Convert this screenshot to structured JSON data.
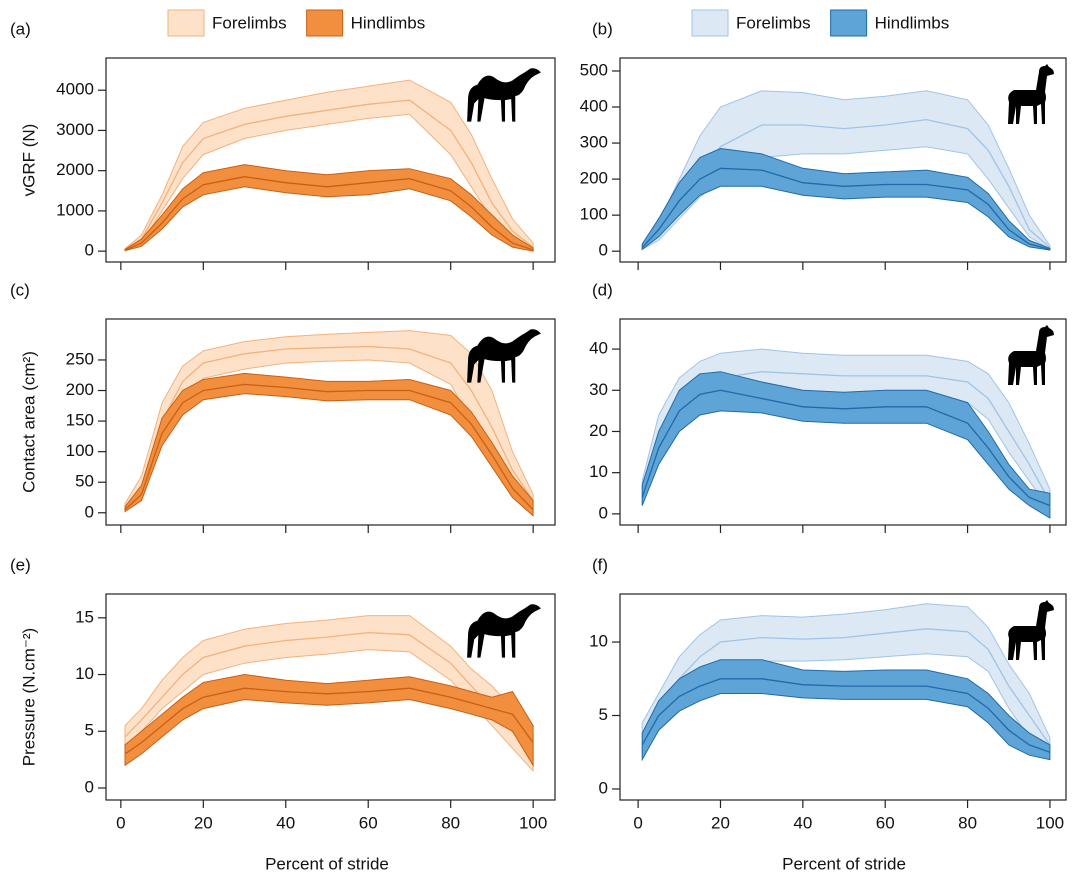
{
  "chart_data": [
    {
      "type": "band",
      "label": "(a)",
      "ylabel": "vGRF (N)",
      "x": [
        1,
        5,
        10,
        15,
        20,
        30,
        40,
        50,
        60,
        70,
        80,
        85,
        90,
        95,
        100
      ],
      "xlim": [
        -3.6,
        105.3
      ],
      "ylim": [
        -270,
        4800
      ],
      "xticks": [
        0,
        20,
        40,
        60,
        80,
        100
      ],
      "yticks": [
        0,
        1000,
        2000,
        3000,
        4000
      ],
      "series": [
        {
          "name": "Forelimbs",
          "color": "#fde1c8",
          "line_color": "#f4b27c",
          "values": [
            50,
            300,
            1200,
            2200,
            2800,
            3150,
            3350,
            3500,
            3650,
            3750,
            3000,
            2200,
            1200,
            500,
            100
          ],
          "upper": [
            60,
            400,
            1400,
            2600,
            3200,
            3550,
            3750,
            3950,
            4100,
            4250,
            3700,
            2900,
            1800,
            800,
            200
          ],
          "lower": [
            30,
            200,
            1000,
            1800,
            2400,
            2800,
            3000,
            3150,
            3300,
            3400,
            2400,
            1600,
            800,
            250,
            20
          ]
        },
        {
          "name": "Hindlimbs",
          "color": "#f28f3f",
          "line_color": "#c95f14",
          "values": [
            20,
            200,
            700,
            1300,
            1650,
            1850,
            1700,
            1600,
            1700,
            1800,
            1500,
            1100,
            600,
            200,
            30
          ],
          "upper": [
            40,
            300,
            900,
            1550,
            1950,
            2150,
            2000,
            1900,
            2000,
            2050,
            1800,
            1400,
            900,
            400,
            80
          ],
          "lower": [
            10,
            120,
            550,
            1100,
            1400,
            1600,
            1450,
            1350,
            1400,
            1550,
            1250,
            850,
            400,
            100,
            0
          ]
        }
      ]
    },
    {
      "type": "band",
      "label": "(b)",
      "x": [
        1,
        5,
        10,
        15,
        20,
        30,
        40,
        50,
        60,
        70,
        80,
        85,
        90,
        95,
        100
      ],
      "xlim": [
        -4.4,
        103.9
      ],
      "ylim": [
        -30,
        536
      ],
      "xticks": [
        0,
        20,
        40,
        60,
        80,
        100
      ],
      "yticks": [
        0,
        100,
        200,
        300,
        400,
        500
      ],
      "series": [
        {
          "name": "Forelimbs",
          "color": "#dde8f5",
          "line_color": "#9fc4e6",
          "values": [
            10,
            50,
            130,
            220,
            290,
            350,
            350,
            340,
            350,
            365,
            340,
            280,
            180,
            60,
            10
          ],
          "upper": [
            15,
            80,
            200,
            320,
            400,
            445,
            440,
            420,
            430,
            445,
            420,
            350,
            230,
            100,
            15
          ],
          "lower": [
            5,
            30,
            90,
            150,
            200,
            260,
            270,
            270,
            280,
            290,
            270,
            200,
            120,
            40,
            5
          ]
        },
        {
          "name": "Hindlimbs",
          "color": "#5fa4d7",
          "line_color": "#1f6aa8",
          "values": [
            10,
            60,
            140,
            200,
            230,
            225,
            190,
            180,
            185,
            185,
            170,
            130,
            60,
            20,
            5
          ],
          "upper": [
            20,
            90,
            190,
            260,
            285,
            270,
            230,
            215,
            220,
            225,
            205,
            160,
            85,
            30,
            8
          ],
          "lower": [
            5,
            40,
            100,
            155,
            180,
            180,
            155,
            145,
            150,
            150,
            135,
            95,
            40,
            12,
            3
          ]
        }
      ]
    },
    {
      "type": "band",
      "label": "(c)",
      "ylabel": "Contact area (cm²)",
      "x": [
        1,
        5,
        10,
        15,
        20,
        30,
        40,
        50,
        60,
        70,
        80,
        85,
        90,
        95,
        100
      ],
      "xlim": [
        -3.6,
        105.3
      ],
      "ylim": [
        -20,
        317
      ],
      "xticks": [
        0,
        20,
        40,
        60,
        80,
        100
      ],
      "yticks": [
        0,
        50,
        100,
        150,
        200,
        250
      ],
      "series": [
        {
          "name": "Forelimbs",
          "color": "#fde1c8",
          "line_color": "#f4b27c",
          "values": [
            10,
            40,
            150,
            215,
            245,
            260,
            268,
            270,
            272,
            268,
            245,
            200,
            140,
            70,
            20
          ],
          "upper": [
            15,
            60,
            180,
            240,
            265,
            280,
            288,
            292,
            295,
            298,
            290,
            260,
            200,
            100,
            30
          ],
          "lower": [
            5,
            25,
            120,
            185,
            220,
            235,
            245,
            248,
            250,
            245,
            210,
            150,
            90,
            40,
            5
          ]
        },
        {
          "name": "Hindlimbs",
          "color": "#f28f3f",
          "line_color": "#c95f14",
          "values": [
            5,
            30,
            130,
            180,
            200,
            210,
            205,
            198,
            200,
            200,
            180,
            145,
            95,
            40,
            5
          ],
          "upper": [
            10,
            45,
            155,
            200,
            218,
            228,
            222,
            215,
            215,
            218,
            200,
            165,
            115,
            60,
            20
          ],
          "lower": [
            2,
            20,
            110,
            160,
            185,
            195,
            190,
            183,
            185,
            185,
            160,
            125,
            75,
            25,
            -5
          ]
        }
      ]
    },
    {
      "type": "band",
      "label": "(d)",
      "x": [
        1,
        5,
        10,
        15,
        20,
        30,
        40,
        50,
        60,
        70,
        80,
        85,
        90,
        95,
        100
      ],
      "xlim": [
        -4.4,
        103.9
      ],
      "ylim": [
        -2.7,
        47.3
      ],
      "xticks": [
        0,
        20,
        40,
        60,
        80,
        100
      ],
      "yticks": [
        0,
        10,
        20,
        30,
        40
      ],
      "series": [
        {
          "name": "Forelimbs",
          "color": "#dde8f5",
          "line_color": "#9fc4e6",
          "values": [
            5,
            20,
            28,
            31,
            33,
            34.5,
            34,
            33.5,
            33.5,
            33.5,
            32,
            28,
            20,
            12,
            3
          ],
          "upper": [
            8,
            24,
            33,
            37,
            39,
            40,
            39,
            38.5,
            38.5,
            38.5,
            37,
            34,
            27,
            17,
            6
          ],
          "lower": [
            3,
            15,
            24,
            27,
            28,
            29,
            29,
            29,
            29,
            28.5,
            27,
            23,
            15,
            8,
            1
          ]
        },
        {
          "name": "Hindlimbs",
          "color": "#5fa4d7",
          "line_color": "#1f6aa8",
          "values": [
            4,
            16,
            25,
            29,
            30,
            28,
            26,
            25.5,
            26,
            26,
            22,
            16,
            9,
            4,
            2
          ],
          "upper": [
            7,
            20,
            30,
            34,
            34.5,
            32,
            30,
            29.5,
            30,
            30,
            27,
            20,
            12,
            6,
            5
          ],
          "lower": [
            2,
            12,
            20,
            24,
            25,
            24.5,
            22.5,
            22,
            22,
            22,
            18,
            12,
            6,
            2,
            -1
          ]
        }
      ]
    },
    {
      "type": "band",
      "label": "(e)",
      "ylabel": "Pressure (N.cm⁻²)",
      "xlabel": "Percent of stride",
      "x": [
        1,
        5,
        10,
        15,
        20,
        30,
        40,
        50,
        60,
        70,
        80,
        85,
        90,
        95,
        100
      ],
      "xlim": [
        -3.6,
        105.3
      ],
      "ylim": [
        -1.06,
        17.1
      ],
      "xticks": [
        0,
        20,
        40,
        60,
        80,
        100
      ],
      "yticks": [
        0,
        5,
        10,
        15
      ],
      "series": [
        {
          "name": "Forelimbs",
          "color": "#fde1c8",
          "line_color": "#f4b27c",
          "values": [
            4.5,
            6,
            8,
            10,
            11.5,
            12.5,
            13,
            13.3,
            13.7,
            13.5,
            11,
            9,
            7,
            5,
            3
          ],
          "upper": [
            5.5,
            7,
            9.5,
            11.5,
            13,
            14,
            14.5,
            14.8,
            15.2,
            15.2,
            12.5,
            10.5,
            9,
            7,
            4
          ],
          "lower": [
            3.5,
            5,
            7,
            8.5,
            10,
            11,
            11.5,
            11.8,
            12.2,
            12,
            9.5,
            7.5,
            5.5,
            3.5,
            1.5
          ]
        },
        {
          "name": "Hindlimbs",
          "color": "#f28f3f",
          "line_color": "#c95f14",
          "values": [
            3,
            4,
            5.5,
            7,
            8,
            8.8,
            8.5,
            8.3,
            8.5,
            8.8,
            8,
            7.5,
            7,
            6.5,
            4
          ],
          "upper": [
            3.8,
            5,
            6.5,
            8,
            9.3,
            10,
            9.5,
            9.2,
            9.5,
            9.8,
            9,
            8.5,
            8,
            8.5,
            5.5
          ],
          "lower": [
            2,
            3,
            4.5,
            6,
            7,
            7.8,
            7.5,
            7.3,
            7.5,
            7.8,
            7,
            6.5,
            6,
            5,
            2
          ]
        }
      ]
    },
    {
      "type": "band",
      "label": "(f)",
      "xlabel": "Percent of stride",
      "x": [
        1,
        5,
        10,
        15,
        20,
        30,
        40,
        50,
        60,
        70,
        80,
        85,
        90,
        95,
        100
      ],
      "xlim": [
        -4.4,
        103.9
      ],
      "ylim": [
        -0.75,
        13.27
      ],
      "xticks": [
        0,
        20,
        40,
        60,
        80,
        100
      ],
      "yticks": [
        0,
        5,
        10
      ],
      "series": [
        {
          "name": "Forelimbs",
          "color": "#dde8f5",
          "line_color": "#9fc4e6",
          "values": [
            3.5,
            5.5,
            7.5,
            9,
            10,
            10.3,
            10.2,
            10.3,
            10.6,
            10.9,
            10.7,
            9.5,
            7,
            5,
            3
          ],
          "upper": [
            4.5,
            6.5,
            9,
            10.5,
            11.5,
            11.8,
            11.7,
            11.9,
            12.2,
            12.6,
            12.4,
            11,
            8.5,
            6.5,
            3.5
          ],
          "lower": [
            2.5,
            4.5,
            6,
            7.5,
            8.5,
            8.7,
            8.7,
            8.8,
            9,
            9.2,
            9,
            8,
            5.5,
            3.5,
            2.5
          ]
        },
        {
          "name": "Hindlimbs",
          "color": "#5fa4d7",
          "line_color": "#1f6aa8",
          "values": [
            3,
            5,
            6.3,
            7,
            7.5,
            7.5,
            7.1,
            7,
            7,
            7,
            6.5,
            5.5,
            4,
            3,
            2.5
          ],
          "upper": [
            3.8,
            6,
            7.5,
            8.3,
            8.8,
            8.8,
            8.1,
            8,
            8.1,
            8.1,
            7.5,
            6.5,
            5,
            3.8,
            3
          ],
          "lower": [
            2,
            4,
            5.3,
            6,
            6.5,
            6.5,
            6.2,
            6.1,
            6.1,
            6.1,
            5.6,
            4.5,
            3,
            2.3,
            2
          ]
        }
      ]
    }
  ]
}
